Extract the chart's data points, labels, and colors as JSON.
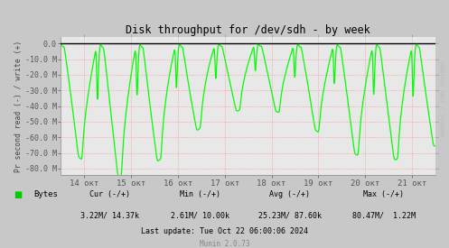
{
  "title": "Disk throughput for /dev/sdh - by week",
  "ylabel": "Pr second read (-) / write (+)",
  "ylim_min": -84000000,
  "ylim_max": 4000000,
  "ytick_vals": [
    0,
    -10000000,
    -20000000,
    -30000000,
    -40000000,
    -50000000,
    -60000000,
    -70000000,
    -80000000
  ],
  "ytick_labels": [
    "0.0",
    "-10.0 M",
    "-20.0 M",
    "-30.0 M",
    "-40.0 M",
    "-50.0 M",
    "-60.0 M",
    "-70.0 M",
    "-80.0 M"
  ],
  "xtick_positions": [
    0.5,
    1.5,
    2.5,
    3.5,
    4.5,
    5.5,
    6.5,
    7.5
  ],
  "xtick_labels": [
    "14 окт",
    "15 окт",
    "16 окт",
    "17 окт",
    "18 окт",
    "19 окт",
    "20 окт",
    "21 окт"
  ],
  "xlim_min": 0,
  "xlim_max": 8,
  "line_color": "#00FF00",
  "bg_color": "#C8C8C8",
  "plot_bg_color": "#E8E8E8",
  "grid_color": "#FF8080",
  "border_color": "#888888",
  "watermark": "RRDTOOL / TOBI OETIKER",
  "legend_label": "Bytes",
  "legend_color": "#00CC00",
  "cur_label": "Cur (-/+)",
  "cur_val": "3.22M/ 14.37k",
  "min_label": "Min (-/+)",
  "min_val": "2.61M/ 10.00k",
  "avg_label": "Avg (-/+)",
  "avg_val": "25.23M/ 87.60k",
  "max_label": "Max (-/+)",
  "max_val": "80.47M/  1.22M",
  "last_update": "Last update: Tue Oct 22 06:00:06 2024",
  "munin_ver": "Munin 2.0.73"
}
